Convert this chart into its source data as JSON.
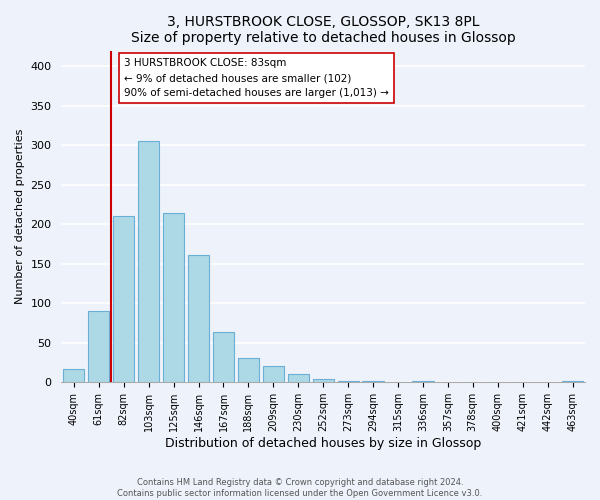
{
  "title": "3, HURSTBROOK CLOSE, GLOSSOP, SK13 8PL",
  "subtitle": "Size of property relative to detached houses in Glossop",
  "xlabel": "Distribution of detached houses by size in Glossop",
  "ylabel": "Number of detached properties",
  "bar_labels": [
    "40sqm",
    "61sqm",
    "82sqm",
    "103sqm",
    "125sqm",
    "146sqm",
    "167sqm",
    "188sqm",
    "209sqm",
    "230sqm",
    "252sqm",
    "273sqm",
    "294sqm",
    "315sqm",
    "336sqm",
    "357sqm",
    "378sqm",
    "400sqm",
    "421sqm",
    "442sqm",
    "463sqm"
  ],
  "bar_heights": [
    17,
    90,
    211,
    305,
    214,
    161,
    64,
    31,
    20,
    10,
    4,
    2,
    1,
    0,
    1,
    0,
    0,
    0,
    0,
    0,
    2
  ],
  "bar_color": "#add8e6",
  "bar_edge_color": "#6baed6",
  "vline_pos": 1.5,
  "vline_color": "#cc0000",
  "annotation_title": "3 HURSTBROOK CLOSE: 83sqm",
  "annotation_line1": "← 9% of detached houses are smaller (102)",
  "annotation_line2": "90% of semi-detached houses are larger (1,013) →",
  "annotation_box_color": "#ffffff",
  "annotation_box_edge": "#cc0000",
  "ylim": [
    0,
    420
  ],
  "yticks": [
    0,
    50,
    100,
    150,
    200,
    250,
    300,
    350,
    400
  ],
  "footer_line1": "Contains HM Land Registry data © Crown copyright and database right 2024.",
  "footer_line2": "Contains public sector information licensed under the Open Government Licence v3.0.",
  "bg_color": "#eef2fb",
  "plot_bg_color": "#eef2fb",
  "grid_color": "#ffffff"
}
